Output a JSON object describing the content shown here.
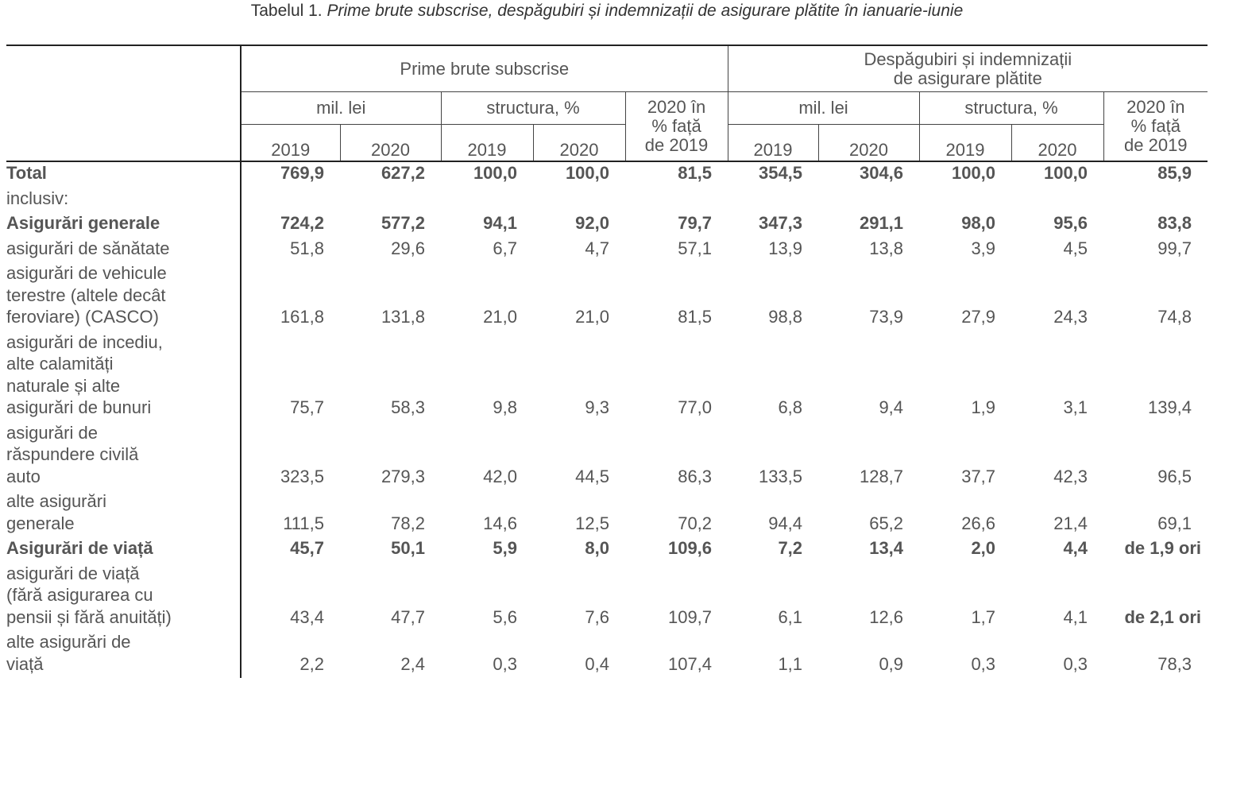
{
  "caption": {
    "label": "Tabelul 1.",
    "title": "Prime brute subscrise, despăgubiri și indemnizații de asigurare plătite în ianuarie-iunie"
  },
  "header": {
    "group1": "Prime brute subscrise",
    "group2_line1": "Despăgubiri și indemnizații",
    "group2_line2": "de asigurare plătite",
    "mil_lei": "mil. lei",
    "structura": "structura, %",
    "ratio_line1": "2020 în",
    "ratio_line2": "% față",
    "ratio_line3": "de 2019",
    "y2019": "2019",
    "y2020": "2020"
  },
  "rows": [
    {
      "label": "Total",
      "values": [
        "769,9",
        "627,2",
        "100,0",
        "100,0",
        "81,5",
        "354,5",
        "304,6",
        "100,0",
        "100,0",
        "85,9"
      ]
    },
    {
      "label": "inclusiv:",
      "values": [
        "",
        "",
        "",
        "",
        "",
        "",
        "",
        "",
        "",
        ""
      ]
    },
    {
      "label": "Asigurări generale",
      "values": [
        "724,2",
        "577,2",
        "94,1",
        "92,0",
        "79,7",
        "347,3",
        "291,1",
        "98,0",
        "95,6",
        "83,8"
      ]
    },
    {
      "label": "asigurări de sănătate",
      "values": [
        "51,8",
        "29,6",
        "6,7",
        "4,7",
        "57,1",
        "13,9",
        "13,8",
        "3,9",
        "4,5",
        "99,7"
      ]
    },
    {
      "label_lines": [
        "asigurări de vehicule",
        "terestre (altele decât",
        "feroviare) (CASCO)"
      ],
      "values": [
        "161,8",
        "131,8",
        "21,0",
        "21,0",
        "81,5",
        "98,8",
        "73,9",
        "27,9",
        "24,3",
        "74,8"
      ]
    },
    {
      "label_lines": [
        "asigurări de incediu,",
        "alte calamități",
        "naturale și alte",
        "asigurări de bunuri"
      ],
      "values": [
        "75,7",
        "58,3",
        "9,8",
        "9,3",
        "77,0",
        "6,8",
        "9,4",
        "1,9",
        "3,1",
        "139,4"
      ]
    },
    {
      "label_lines": [
        "asigurări de",
        "răspundere civilă",
        "auto"
      ],
      "values": [
        "323,5",
        "279,3",
        "42,0",
        "44,5",
        "86,3",
        "133,5",
        "128,7",
        "37,7",
        "42,3",
        "96,5"
      ]
    },
    {
      "label_lines": [
        "alte asigurări",
        "generale"
      ],
      "values": [
        "111,5",
        "78,2",
        "14,6",
        "12,5",
        "70,2",
        "94,4",
        "65,2",
        "26,6",
        "21,4",
        "69,1"
      ]
    },
    {
      "label": "Asigurări de viață",
      "values": [
        "45,7",
        "50,1",
        "5,9",
        "8,0",
        "109,6",
        "7,2",
        "13,4",
        "2,0",
        "4,4",
        "de 1,9 ori"
      ]
    },
    {
      "label_lines": [
        "asigurări de viață",
        "(fără asigurarea cu",
        "pensii și fără anuități)"
      ],
      "values": [
        "43,4",
        "47,7",
        "5,6",
        "7,6",
        "109,7",
        "6,1",
        "12,6",
        "1,7",
        "4,1",
        "de 2,1 ori"
      ]
    },
    {
      "label_lines": [
        "alte asigurări de",
        "viață"
      ],
      "values": [
        "2,2",
        "2,4",
        "0,3",
        "0,4",
        "107,4",
        "1,1",
        "0,9",
        "0,3",
        "0,3",
        "78,3"
      ]
    }
  ]
}
